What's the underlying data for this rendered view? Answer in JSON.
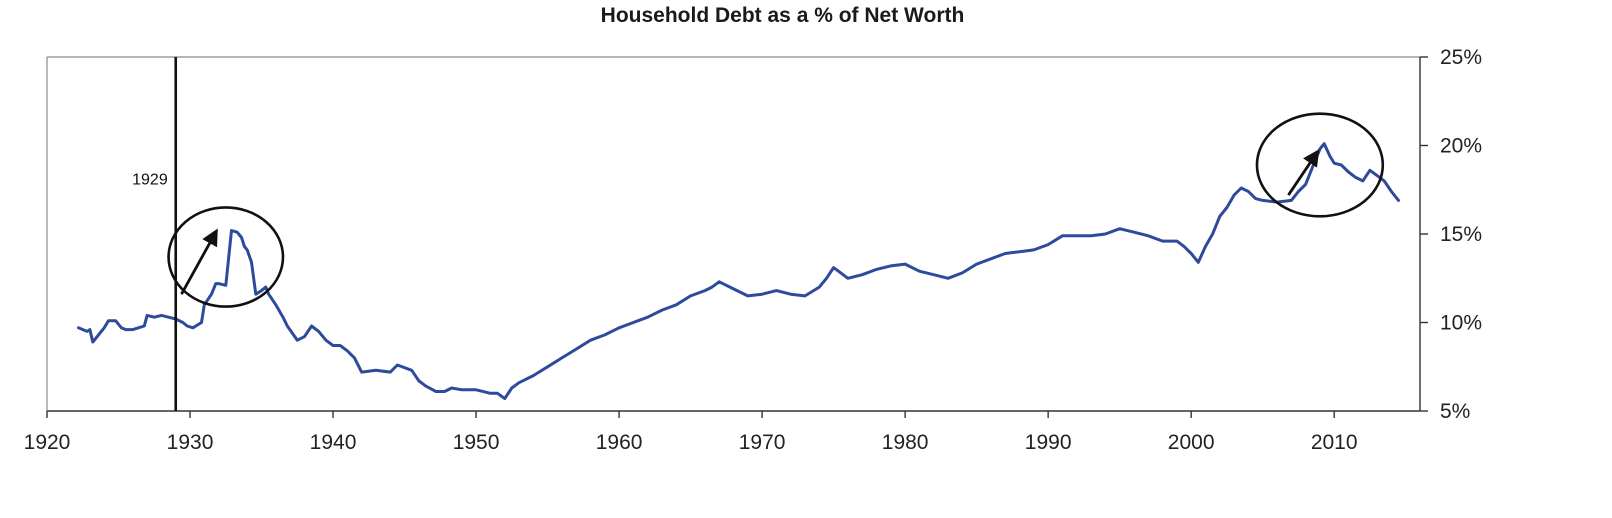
{
  "chart_data": {
    "type": "line",
    "title": "Household Debt as a % of Net Worth",
    "xlabel": "",
    "ylabel": "",
    "xlim": [
      1920,
      2016
    ],
    "ylim": [
      5,
      25
    ],
    "x_ticks": [
      1920,
      1930,
      1940,
      1950,
      1960,
      1970,
      1980,
      1990,
      2000,
      2010
    ],
    "x_tick_labels": [
      "1920",
      "1930",
      "1940",
      "1950",
      "1960",
      "1970",
      "1980",
      "1990",
      "2000",
      "2010"
    ],
    "y_ticks": [
      5,
      10,
      15,
      20,
      25
    ],
    "y_tick_labels": [
      "5%",
      "10%",
      "15%",
      "20%",
      "25%"
    ],
    "y_axis_side": "right",
    "grid": false,
    "legend": "none",
    "line_color": "#2e4a9b",
    "series": [
      {
        "x": [
          1922.2,
          1922.8,
          1923.0,
          1923.2,
          1923.5,
          1924.0,
          1924.3,
          1924.8,
          1925.2,
          1925.5,
          1926.0,
          1926.8,
          1927.0,
          1927.5,
          1928.0,
          1928.5,
          1929.0,
          1929.5,
          1929.8,
          1930.2,
          1930.8,
          1931.0,
          1931.5,
          1931.8,
          1932.0,
          1932.5,
          1932.9,
          1933.3,
          1933.6,
          1933.8,
          1934.0,
          1934.3,
          1934.6,
          1935.0,
          1935.3,
          1935.5,
          1936.0,
          1936.5,
          1936.8,
          1937.5,
          1938.0,
          1938.5,
          1939.0,
          1939.5,
          1940.0,
          1940.5,
          1941.0,
          1941.5,
          1942.0,
          1943.0,
          1944.0,
          1944.5,
          1945.5,
          1946.0,
          1946.5,
          1947.2,
          1947.8,
          1948.3,
          1949.0,
          1950.0,
          1951.0,
          1951.5,
          1952.0,
          1952.5,
          1953.0,
          1954.0,
          1955.0,
          1956.0,
          1957.0,
          1958.0,
          1959.0,
          1960.0,
          1961.0,
          1962.0,
          1963.0,
          1964.0,
          1965.0,
          1966.0,
          1966.5,
          1967.0,
          1968.0,
          1969.0,
          1970.0,
          1971.0,
          1972.0,
          1973.0,
          1974.0,
          1974.5,
          1975.0,
          1975.5,
          1976.0,
          1977.0,
          1978.0,
          1979.0,
          1980.0,
          1981.0,
          1982.0,
          1983.0,
          1984.0,
          1985.0,
          1986.0,
          1987.0,
          1988.0,
          1989.0,
          1990.0,
          1991.0,
          1992.0,
          1993.0,
          1994.0,
          1995.0,
          1996.0,
          1997.0,
          1998.0,
          1999.0,
          1999.5,
          2000.0,
          2000.5,
          2001.0,
          2001.5,
          2002.0,
          2002.5,
          2003.0,
          2003.5,
          2004.0,
          2004.5,
          2005.0,
          2006.0,
          2007.0,
          2007.5,
          2008.0,
          2008.5,
          2009.0,
          2009.3,
          2009.7,
          2010.0,
          2010.5,
          2011.0,
          2011.5,
          2012.0,
          2012.5,
          2013.0,
          2013.5,
          2014.0,
          2014.5
        ],
        "y": [
          9.7,
          9.5,
          9.6,
          8.9,
          9.2,
          9.7,
          10.1,
          10.1,
          9.7,
          9.6,
          9.6,
          9.8,
          10.4,
          10.3,
          10.4,
          10.3,
          10.2,
          10.0,
          9.8,
          9.7,
          10.0,
          11.0,
          11.6,
          12.2,
          12.2,
          12.1,
          15.2,
          15.1,
          14.8,
          14.3,
          14.1,
          13.4,
          11.6,
          11.8,
          12.0,
          11.6,
          11.0,
          10.3,
          9.8,
          9.0,
          9.2,
          9.8,
          9.5,
          9.0,
          8.7,
          8.7,
          8.4,
          8.0,
          7.2,
          7.3,
          7.2,
          7.6,
          7.3,
          6.7,
          6.4,
          6.1,
          6.1,
          6.3,
          6.2,
          6.2,
          6.0,
          6.0,
          5.7,
          6.3,
          6.6,
          7.0,
          7.5,
          8.0,
          8.5,
          9.0,
          9.3,
          9.7,
          10.0,
          10.3,
          10.7,
          11.0,
          11.5,
          11.8,
          12.0,
          12.3,
          11.9,
          11.5,
          11.6,
          11.8,
          11.6,
          11.5,
          12.0,
          12.5,
          13.1,
          12.8,
          12.5,
          12.7,
          13.0,
          13.2,
          13.3,
          12.9,
          12.7,
          12.5,
          12.8,
          13.3,
          13.6,
          13.9,
          14.0,
          14.1,
          14.4,
          14.9,
          14.9,
          14.9,
          15.0,
          15.3,
          15.1,
          14.9,
          14.6,
          14.6,
          14.3,
          13.9,
          13.4,
          14.3,
          15.0,
          16.0,
          16.5,
          17.2,
          17.6,
          17.4,
          17.0,
          16.9,
          16.8,
          16.9,
          17.4,
          17.8,
          18.8,
          19.8,
          20.1,
          19.4,
          19.0,
          18.9,
          18.5,
          18.2,
          18.0,
          18.6,
          18.3,
          18.0,
          17.4,
          16.9
        ]
      }
    ],
    "annotations": [
      {
        "type": "vertical-line",
        "x": 1929.0,
        "label": "1929"
      },
      {
        "type": "circle",
        "cx": 1932.5,
        "cy": 13.7,
        "rx": 4.0,
        "ry": 2.8
      },
      {
        "type": "arrow",
        "from": [
          1929.4,
          11.6
        ],
        "to": [
          1931.8,
          15.1
        ]
      },
      {
        "type": "circle",
        "cx": 2009.0,
        "cy": 18.9,
        "rx": 4.4,
        "ry": 2.9
      },
      {
        "type": "arrow",
        "from": [
          2006.8,
          17.2
        ],
        "to": [
          2008.8,
          19.6
        ]
      }
    ]
  }
}
